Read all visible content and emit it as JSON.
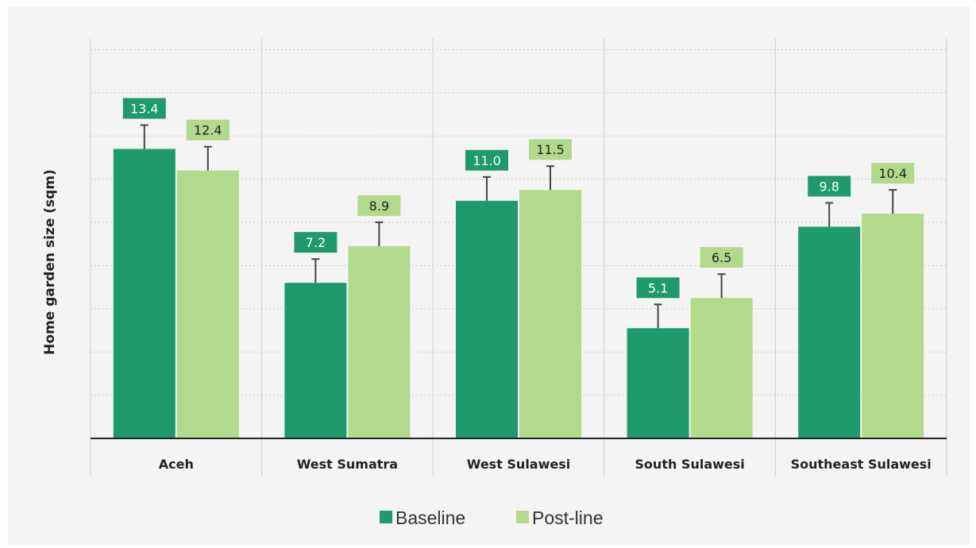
{
  "chart_data": {
    "type": "bar",
    "ylabel": "Home garden size (sqm)",
    "xlabel": "",
    "categories": [
      "Aceh",
      "West Sumatra",
      "West Sulawesi",
      "South Sulawesi",
      "Southeast Sulawesi"
    ],
    "series": [
      {
        "name": "Baseline",
        "values": [
          13.4,
          7.2,
          11.0,
          5.1,
          9.8
        ],
        "labels": [
          "13.4",
          "7.2",
          "11.0",
          "5.1",
          "9.8"
        ],
        "color": "#1f9a6c"
      },
      {
        "name": "Post-line",
        "values": [
          12.4,
          8.9,
          11.5,
          6.5,
          10.4
        ],
        "labels": [
          "12.4",
          "8.9",
          "11.5",
          "6.5",
          "10.4"
        ],
        "color": "#b3d98c"
      }
    ],
    "error_bars": true,
    "grid": true,
    "legend_position": "bottom"
  },
  "colors": {
    "baseline": "#1f9a6c",
    "postline": "#b3d98c",
    "background": "#f4f4f4",
    "grid": "#c8c8c8",
    "axis": "#222222"
  }
}
